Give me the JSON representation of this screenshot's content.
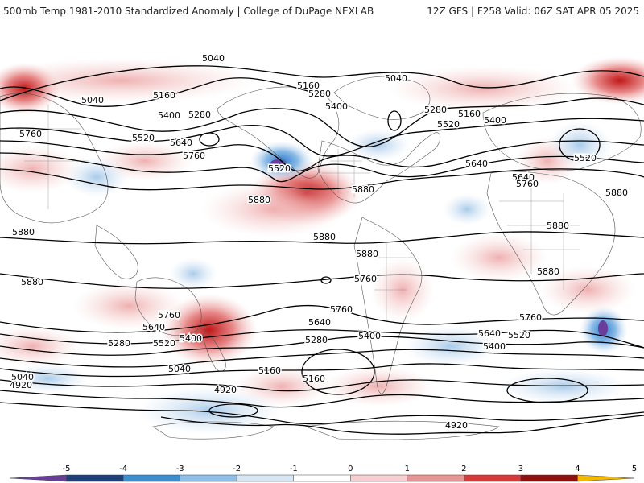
{
  "header": {
    "left": "500mb Temp 1981-2010 Standardized Anomaly | College of DuPage NEXLAB",
    "right": "12Z GFS | F258 Valid: 06Z SAT APR 05 2025"
  },
  "contours": [
    {
      "label": "5040"
    },
    {
      "label": "5040"
    },
    {
      "label": "5040"
    },
    {
      "label": "5040"
    },
    {
      "label": "5040"
    },
    {
      "label": "5160"
    },
    {
      "label": "5160"
    },
    {
      "label": "5160"
    },
    {
      "label": "5160"
    },
    {
      "label": "5160"
    },
    {
      "label": "5280"
    },
    {
      "label": "5280"
    },
    {
      "label": "5280"
    },
    {
      "label": "5280"
    },
    {
      "label": "5280"
    },
    {
      "label": "5400"
    },
    {
      "label": "5400"
    },
    {
      "label": "5400"
    },
    {
      "label": "5400"
    },
    {
      "label": "5400"
    },
    {
      "label": "5400"
    },
    {
      "label": "5520"
    },
    {
      "label": "5520"
    },
    {
      "label": "5520"
    },
    {
      "label": "5520"
    },
    {
      "label": "5520"
    },
    {
      "label": "5520"
    },
    {
      "label": "5640"
    },
    {
      "label": "5640"
    },
    {
      "label": "5640"
    },
    {
      "label": "5640"
    },
    {
      "label": "5640"
    },
    {
      "label": "5640"
    },
    {
      "label": "5760"
    },
    {
      "label": "5760"
    },
    {
      "label": "5760"
    },
    {
      "label": "5760"
    },
    {
      "label": "5760"
    },
    {
      "label": "5760"
    },
    {
      "label": "5760"
    },
    {
      "label": "5880"
    },
    {
      "label": "5880"
    },
    {
      "label": "5880"
    },
    {
      "label": "5880"
    },
    {
      "label": "5880"
    },
    {
      "label": "5880"
    },
    {
      "label": "5880"
    },
    {
      "label": "5880"
    },
    {
      "label": "5880"
    },
    {
      "label": "4920"
    },
    {
      "label": "4920"
    },
    {
      "label": "4920"
    }
  ],
  "colorbar": {
    "ticks": [
      "-5",
      "-4",
      "-3",
      "-2",
      "-1",
      "0",
      "1",
      "2",
      "3",
      "4",
      "5"
    ],
    "colors": [
      "#6a3d9a",
      "#1f3f7a",
      "#3a8fd0",
      "#8fbfe6",
      "#d6e6f5",
      "#ffffff",
      "#f6d0d0",
      "#e89494",
      "#d43a3a",
      "#8e1010",
      "#f5b800"
    ]
  }
}
